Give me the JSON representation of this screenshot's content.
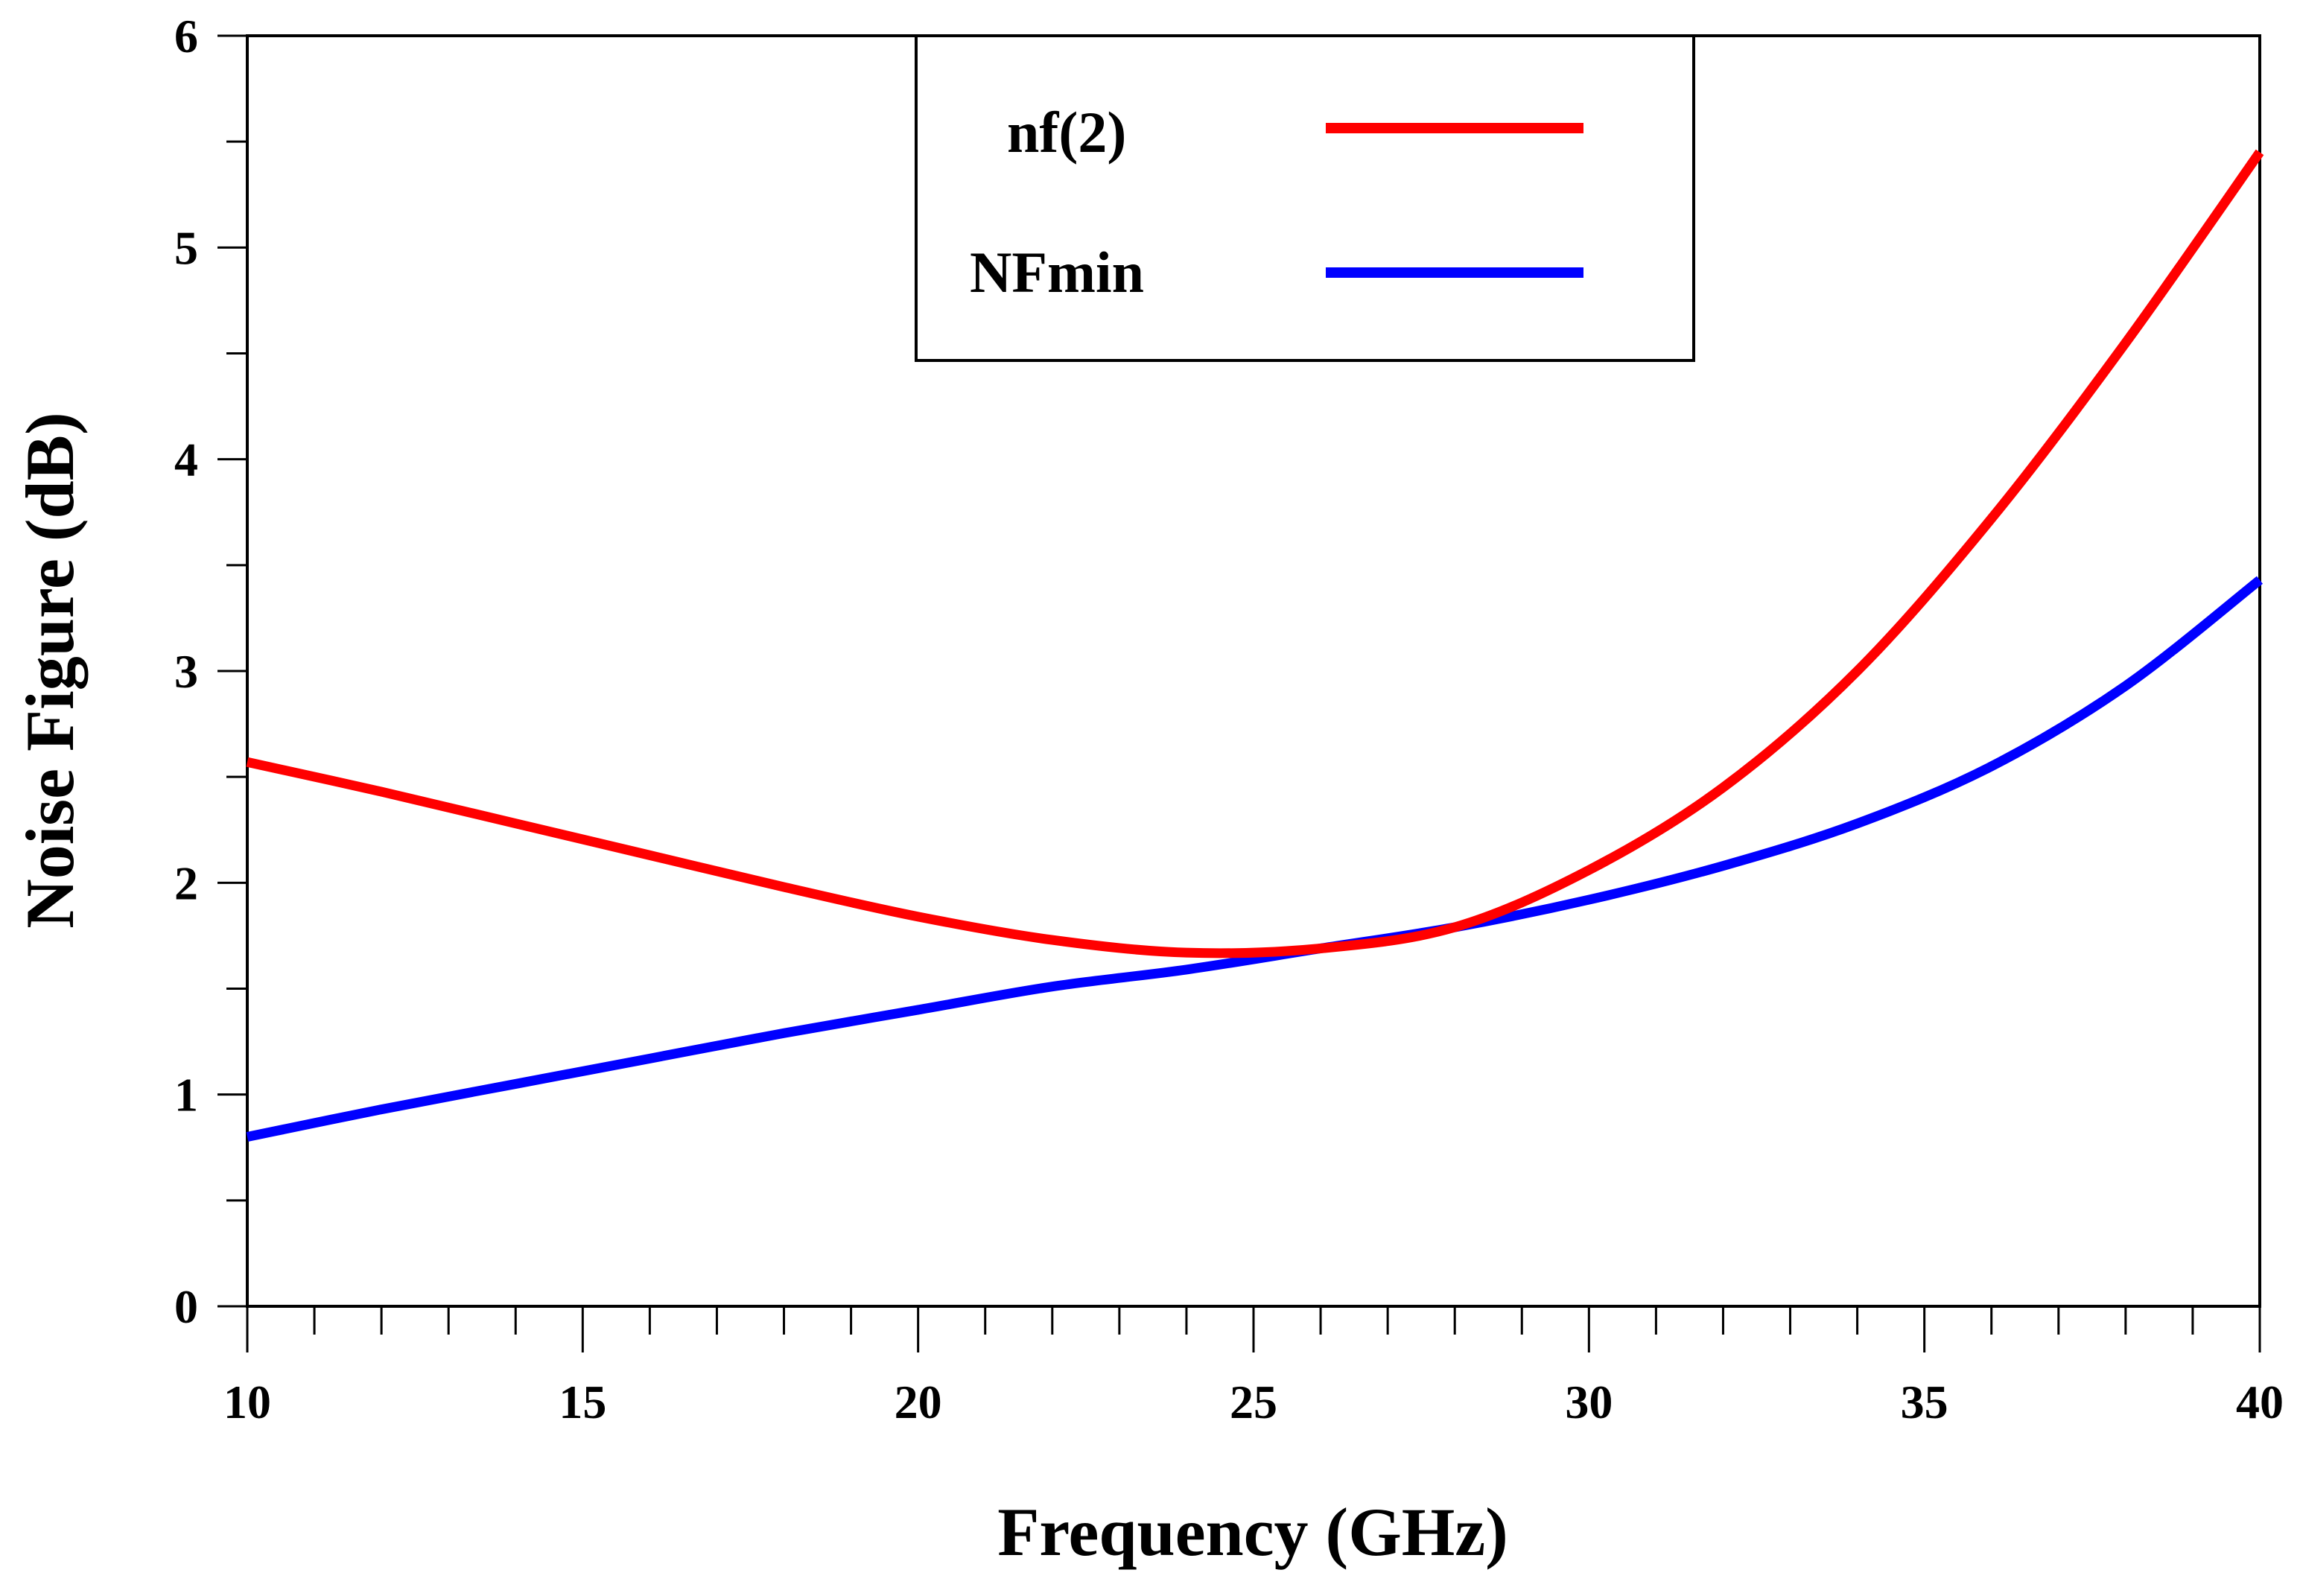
{
  "chart_data": {
    "type": "line",
    "title": "",
    "xlabel": "Frequency (GHz)",
    "ylabel": "Noise Figure (dB)",
    "xlim": [
      10,
      40
    ],
    "ylim": [
      0,
      6
    ],
    "x_major_ticks": [
      10,
      15,
      20,
      25,
      30,
      35,
      40
    ],
    "x_minor_step": 1,
    "y_major_ticks": [
      0,
      1,
      2,
      3,
      4,
      5,
      6
    ],
    "y_minor_step": 0.5,
    "grid": false,
    "legend_position": "top-center",
    "x": [
      10,
      12,
      14,
      16,
      18,
      20,
      22,
      24,
      26,
      28,
      30,
      32,
      34,
      36,
      38,
      40
    ],
    "series": [
      {
        "name": "nf(2)",
        "color": "#ff0000",
        "values": [
          2.57,
          2.43,
          2.28,
          2.13,
          1.98,
          1.84,
          1.73,
          1.67,
          1.69,
          1.79,
          2.06,
          2.45,
          3.0,
          3.72,
          4.55,
          5.45
        ]
      },
      {
        "name": "NFmin",
        "color": "#0000ff",
        "values": [
          0.8,
          0.93,
          1.05,
          1.17,
          1.29,
          1.4,
          1.51,
          1.59,
          1.69,
          1.79,
          1.92,
          2.08,
          2.28,
          2.55,
          2.93,
          3.43
        ]
      }
    ]
  }
}
